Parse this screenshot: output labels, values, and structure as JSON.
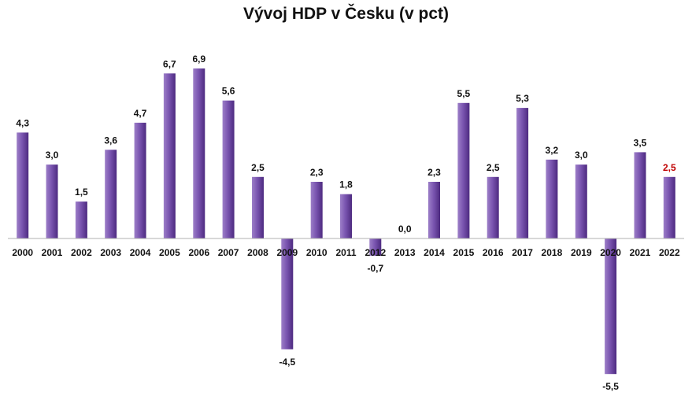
{
  "chart_data": {
    "type": "bar",
    "title": "Vývoj HDP v Česku (v pct)",
    "xlabel": "",
    "ylabel": "",
    "categories": [
      "2000",
      "2001",
      "2002",
      "2003",
      "2004",
      "2005",
      "2006",
      "2007",
      "2008",
      "2009",
      "2010",
      "2011",
      "2012",
      "2013",
      "2014",
      "2015",
      "2016",
      "2017",
      "2018",
      "2019",
      "2020",
      "2021",
      "2022"
    ],
    "values": [
      4.3,
      3.0,
      1.5,
      3.6,
      4.7,
      6.7,
      6.9,
      5.6,
      2.5,
      -4.5,
      2.3,
      1.8,
      -0.7,
      0.0,
      2.3,
      5.5,
      2.5,
      5.3,
      3.2,
      3.0,
      -5.5,
      3.5,
      2.5
    ],
    "data_labels": [
      "4,3",
      "3,0",
      "1,5",
      "3,6",
      "4,7",
      "6,7",
      "6,9",
      "5,6",
      "2,5",
      "-4,5",
      "2,3",
      "1,8",
      "-0,7",
      "0,0",
      "2,3",
      "5,5",
      "2,5",
      "5,3",
      "3,2",
      "3,0",
      "-5,5",
      "3,5",
      "2,5"
    ],
    "highlight_label_index": 22,
    "ylim": [
      -5.5,
      6.9
    ],
    "grid": false,
    "legend": "none",
    "colors": {
      "bar_light": "#9d7fc8",
      "bar_mid": "#7a55b0",
      "bar_dark": "#4d2a80",
      "axis": "#b0b0b0",
      "label": "#111111",
      "highlight_label": "#c00000"
    }
  }
}
